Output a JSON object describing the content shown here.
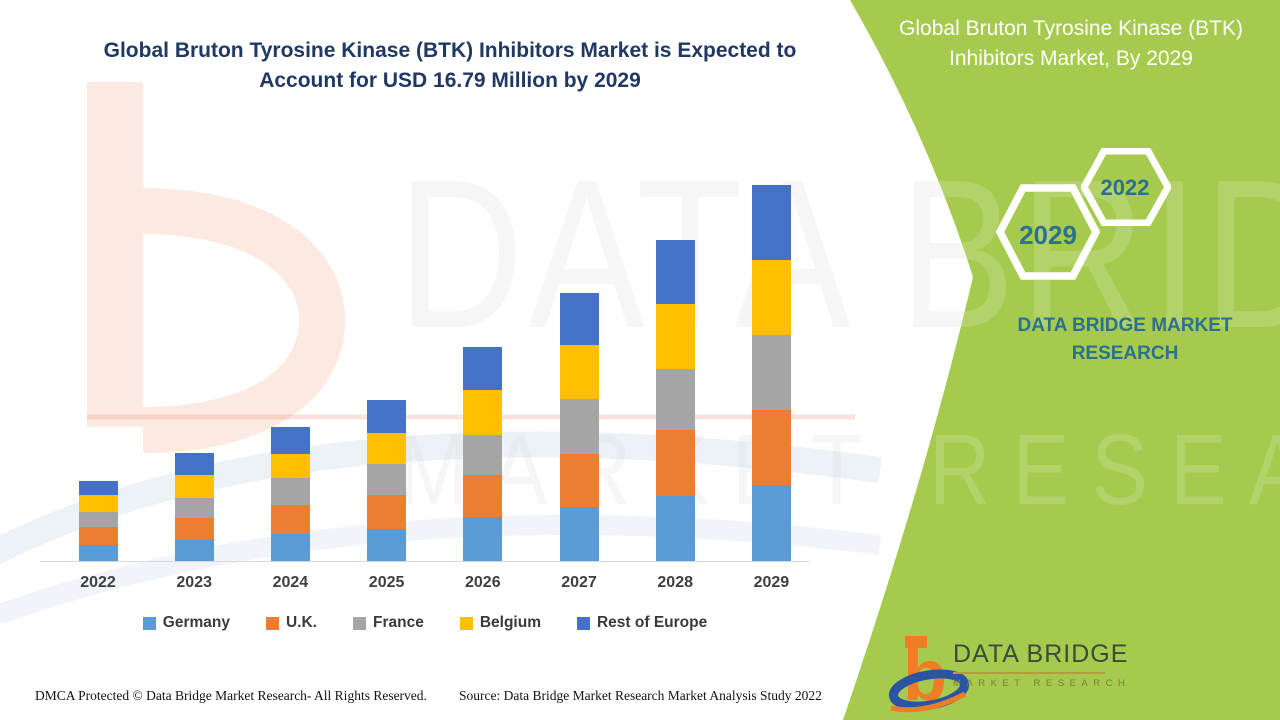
{
  "page": {
    "footer_left": "DMCA Protected © Data Bridge Market Research- All Rights Reserved.",
    "footer_right": "Source: Data Bridge Market Research Market Analysis Study 2022"
  },
  "side_panel": {
    "title": "Global Bruton Tyrosine Kinase (BTK) Inhibitors Market, By 2029",
    "hexagon_small_label": "2022",
    "hexagon_large_label": "2029",
    "brand_text": "DATA BRIDGE MARKET RESEARCH",
    "accent_green": "#a5ca4d",
    "text_teal": "#2d7190"
  },
  "watermark": {
    "line1": "DATA BRIDGE",
    "line2": "MARKET RESEARCH"
  },
  "logo": {
    "monogram": "b",
    "name": "DATA BRIDGE",
    "subtitle": "MARKET RESEARCH",
    "orange": "#ef7d24",
    "blue": "#2b55a2"
  },
  "chart_data": {
    "type": "bar",
    "stacked": true,
    "title": "Global Bruton Tyrosine Kinase (BTK) Inhibitors Market is Expected to Account for USD 16.79 Million by 2029",
    "title_color": "#1f3864",
    "unit": "USD Million",
    "categories": [
      "2022",
      "2023",
      "2024",
      "2025",
      "2026",
      "2027",
      "2028",
      "2029"
    ],
    "series": [
      {
        "name": "Germany",
        "color": "#5B9BD5",
        "values": [
          0.71,
          0.94,
          1.21,
          1.43,
          1.96,
          2.41,
          2.9,
          3.39
        ]
      },
      {
        "name": "U.K.",
        "color": "#ED7D31",
        "values": [
          0.8,
          0.98,
          1.29,
          1.52,
          1.88,
          2.37,
          2.95,
          3.35
        ]
      },
      {
        "name": "France",
        "color": "#A5A5A5",
        "values": [
          0.67,
          0.89,
          1.21,
          1.38,
          1.79,
          2.46,
          2.72,
          3.35
        ]
      },
      {
        "name": "Belgium",
        "color": "#FFC000",
        "values": [
          0.76,
          1.03,
          1.07,
          1.38,
          2.01,
          2.41,
          2.9,
          3.35
        ]
      },
      {
        "name": "Rest of Europe",
        "color": "#4472C4",
        "values": [
          0.63,
          0.98,
          1.21,
          1.47,
          1.92,
          2.32,
          2.86,
          3.35
        ]
      }
    ],
    "totals": [
      3.57,
      4.82,
      5.99,
      7.18,
      9.56,
      11.97,
      14.33,
      16.79
    ],
    "ylim": [
      0,
      18
    ],
    "grid": false,
    "legend_position": "bottom",
    "x_axis_visible": true,
    "y_axis_visible": false
  }
}
